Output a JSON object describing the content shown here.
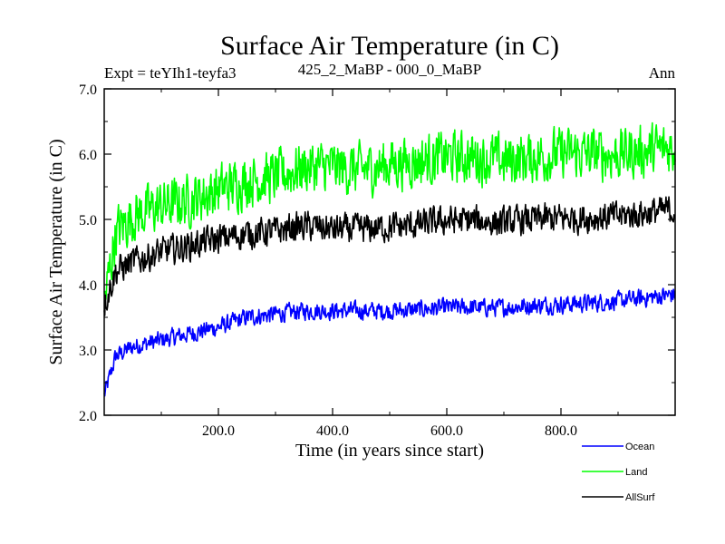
{
  "chart_data": {
    "type": "line",
    "title": "Surface Air Temperature (in C)",
    "subtitle_left": "Expt = teYIh1-teyfa3",
    "subtitle_center": "425_2_MaBP - 000_0_MaBP",
    "subtitle_right": "Ann",
    "xlabel": "Time (in years since start)",
    "ylabel": "Surface Air Temperature (in C)",
    "xlim": [
      0,
      1000
    ],
    "ylim": [
      2.0,
      7.0
    ],
    "x_ticks": [
      200,
      400,
      600,
      800
    ],
    "x_tick_labels": [
      "200.0",
      "400.0",
      "600.0",
      "800.0"
    ],
    "y_ticks": [
      2.0,
      3.0,
      4.0,
      5.0,
      6.0,
      7.0
    ],
    "y_tick_labels": [
      "2.0",
      "3.0",
      "4.0",
      "5.0",
      "6.0",
      "7.0"
    ],
    "legend_position": "bottom-right, below plot",
    "series": [
      {
        "name": "Ocean",
        "color": "#0000ff",
        "x": [
          0,
          20,
          50,
          100,
          150,
          200,
          250,
          300,
          350,
          400,
          450,
          500,
          550,
          600,
          650,
          700,
          750,
          800,
          850,
          900,
          950,
          1000
        ],
        "values": [
          2.3,
          2.9,
          3.05,
          3.15,
          3.25,
          3.35,
          3.5,
          3.55,
          3.6,
          3.6,
          3.6,
          3.6,
          3.62,
          3.65,
          3.65,
          3.65,
          3.68,
          3.7,
          3.72,
          3.75,
          3.8,
          3.85
        ],
        "noise": 0.12
      },
      {
        "name": "Land",
        "color": "#00ff00",
        "x": [
          0,
          20,
          50,
          100,
          150,
          200,
          250,
          300,
          350,
          400,
          450,
          500,
          550,
          600,
          650,
          700,
          750,
          800,
          850,
          900,
          950,
          1000
        ],
        "values": [
          3.7,
          4.8,
          5.05,
          5.2,
          5.3,
          5.45,
          5.6,
          5.65,
          5.8,
          5.8,
          5.75,
          5.85,
          5.9,
          5.95,
          5.95,
          5.9,
          5.95,
          6.0,
          6.0,
          6.0,
          6.05,
          6.1
        ],
        "noise": 0.35
      },
      {
        "name": "AllSurf",
        "color": "#000000",
        "x": [
          0,
          20,
          50,
          100,
          150,
          200,
          250,
          300,
          350,
          400,
          450,
          500,
          550,
          600,
          650,
          700,
          750,
          800,
          850,
          900,
          950,
          1000
        ],
        "values": [
          3.7,
          4.2,
          4.35,
          4.5,
          4.6,
          4.7,
          4.78,
          4.82,
          4.9,
          4.85,
          4.85,
          4.88,
          4.92,
          4.98,
          4.98,
          4.95,
          5.0,
          5.02,
          5.02,
          5.05,
          5.1,
          5.15
        ],
        "noise": 0.2
      }
    ]
  }
}
